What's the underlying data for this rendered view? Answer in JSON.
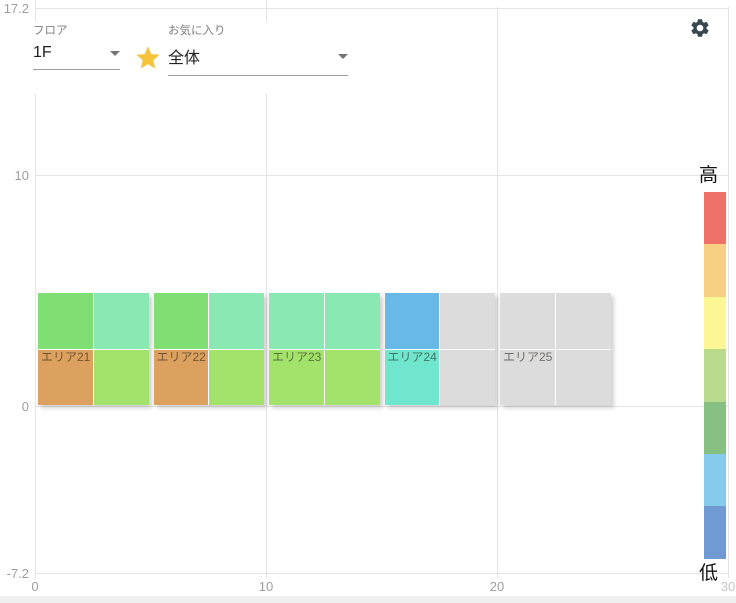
{
  "header": {
    "floor_label": "フロア",
    "floor_value": "1F",
    "favorite_label": "お気に入り",
    "favorite_value": "全体",
    "star_color": "#f5c33c",
    "gear_color": "#37474f"
  },
  "legend": {
    "high": "高",
    "low": "低",
    "colors": [
      "#f0716a",
      "#f8d083",
      "#fcf794",
      "#bada8d",
      "#86c083",
      "#86caec",
      "#6f9bd2"
    ]
  },
  "chart_data": {
    "type": "heatmap",
    "title": "",
    "xlabel": "",
    "ylabel": "",
    "xlim": [
      0,
      30
    ],
    "ylim": [
      -7.2,
      17.2
    ],
    "grid": true,
    "x_ticks": [
      {
        "v": 0,
        "label": "0"
      },
      {
        "v": 10,
        "label": "10"
      },
      {
        "v": 20,
        "label": "20"
      },
      {
        "v": 30,
        "label": "30",
        "muted": true
      }
    ],
    "y_ticks": [
      {
        "v": 17.2,
        "label": "17.2"
      },
      {
        "v": 10,
        "label": "10"
      },
      {
        "v": 0,
        "label": "0"
      },
      {
        "v": -7.2,
        "label": "-7.2"
      }
    ],
    "no_data_color": "#dcdcdc",
    "areas": [
      {
        "label": "エリア21",
        "x": [
          0,
          5
        ],
        "y": [
          0,
          4.9
        ],
        "cells": [
          [
            "#80df72",
            "#8ae9b2"
          ],
          [
            "#dca15e",
            "#a3e36c"
          ]
        ]
      },
      {
        "label": "エリア22",
        "x": [
          5,
          10
        ],
        "y": [
          0,
          4.9
        ],
        "cells": [
          [
            "#80df72",
            "#8ae9b2"
          ],
          [
            "#dca15e",
            "#a3e36c"
          ]
        ]
      },
      {
        "label": "エリア23",
        "x": [
          10,
          15
        ],
        "y": [
          0,
          4.9
        ],
        "cells": [
          [
            "#8ae9b2",
            "#8ae9b2"
          ],
          [
            "#a3e36c",
            "#a3e36c"
          ]
        ]
      },
      {
        "label": "エリア24",
        "x": [
          15,
          20
        ],
        "y": [
          0,
          4.9
        ],
        "cells": [
          [
            "#68b9e7",
            "#dcdcdc"
          ],
          [
            "#6fe6cd",
            "#dcdcdc"
          ]
        ]
      },
      {
        "label": "エリア25",
        "x": [
          20,
          25
        ],
        "y": [
          0,
          4.9
        ],
        "cells": [
          [
            "#dcdcdc",
            "#dcdcdc"
          ],
          [
            "#dcdcdc",
            "#dcdcdc"
          ]
        ]
      }
    ]
  }
}
